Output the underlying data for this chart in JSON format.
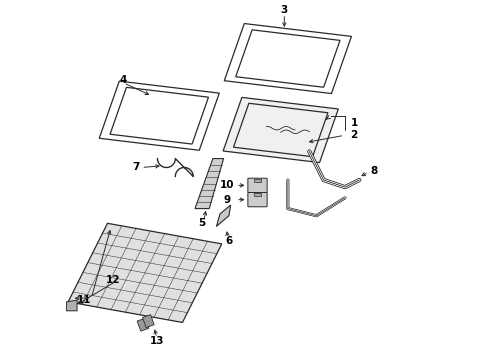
{
  "bg_color": "#ffffff",
  "line_color": "#2a2a2a",
  "text_color": "#000000",
  "fig_width": 4.9,
  "fig_height": 3.6,
  "dpi": 100,
  "labels": [
    "1",
    "2",
    "3",
    "4",
    "5",
    "6",
    "7",
    "8",
    "9",
    "10",
    "11",
    "12",
    "13"
  ]
}
